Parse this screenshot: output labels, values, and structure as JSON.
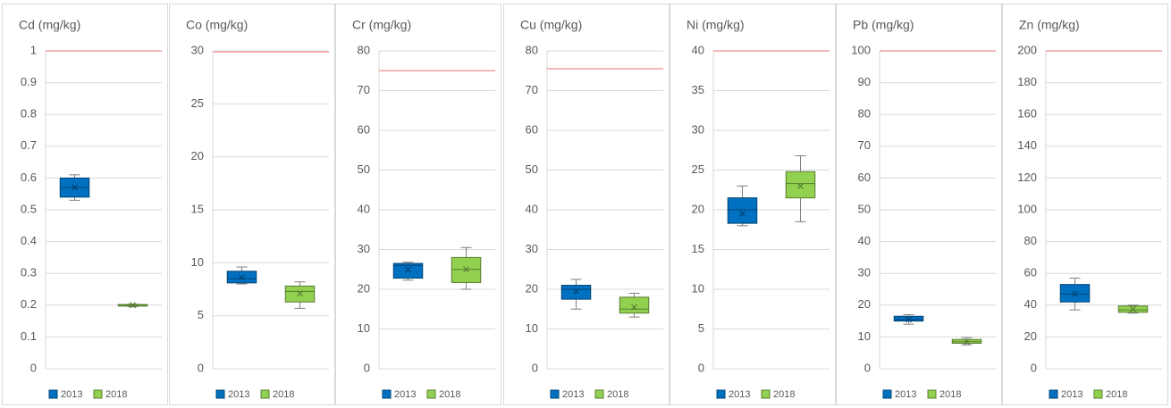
{
  "chart_data": [
    {
      "type": "box",
      "title": "Cd (mg/kg)",
      "ylim": [
        0,
        1
      ],
      "yticks": [
        0,
        0.1,
        0.2,
        0.3,
        0.4,
        0.5,
        0.6,
        0.7,
        0.8,
        0.9,
        1
      ],
      "grid": true,
      "reference_line": 1,
      "reference_color": "#f4a0a0",
      "series": [
        {
          "name": "2013",
          "color": "#0070c0",
          "min": 0.53,
          "q1": 0.54,
          "median": 0.57,
          "q3": 0.6,
          "max": 0.61,
          "mean": 0.57
        },
        {
          "name": "2018",
          "color": "#92d050",
          "min": 0.195,
          "q1": 0.197,
          "median": 0.2,
          "q3": 0.202,
          "max": 0.203,
          "mean": 0.2
        }
      ]
    },
    {
      "type": "box",
      "title": "Co (mg/kg)",
      "ylim": [
        0,
        30
      ],
      "yticks": [
        0,
        5,
        10,
        15,
        20,
        25,
        30
      ],
      "grid": true,
      "reference_line": 29.9,
      "reference_color": "#f4a0a0",
      "series": [
        {
          "name": "2013",
          "color": "#0070c0",
          "min": 8,
          "q1": 8.1,
          "median": 8.5,
          "q3": 9.2,
          "max": 9.6,
          "mean": 8.6
        },
        {
          "name": "2018",
          "color": "#92d050",
          "min": 5.7,
          "q1": 6.3,
          "median": 7.3,
          "q3": 7.8,
          "max": 8.2,
          "mean": 7.1
        }
      ]
    },
    {
      "type": "box",
      "title": "Cr (mg/kg)",
      "ylim": [
        0,
        80
      ],
      "yticks": [
        0,
        10,
        20,
        30,
        40,
        50,
        60,
        70,
        80
      ],
      "grid": true,
      "reference_line": 75,
      "reference_color": "#f4a0a0",
      "series": [
        {
          "name": "2013",
          "color": "#0070c0",
          "min": 22.3,
          "q1": 22.8,
          "median": 26,
          "q3": 26.5,
          "max": 26.8,
          "mean": 25
        },
        {
          "name": "2018",
          "color": "#92d050",
          "min": 20,
          "q1": 21.7,
          "median": 25,
          "q3": 28,
          "max": 30.5,
          "mean": 25
        }
      ]
    },
    {
      "type": "box",
      "title": "Cu (mg/kg)",
      "ylim": [
        0,
        80
      ],
      "yticks": [
        0,
        10,
        20,
        30,
        40,
        50,
        60,
        70,
        80
      ],
      "grid": true,
      "reference_line": 75.5,
      "reference_color": "#f4a0a0",
      "series": [
        {
          "name": "2013",
          "color": "#0070c0",
          "min": 15,
          "q1": 17.5,
          "median": 20,
          "q3": 21,
          "max": 22.5,
          "mean": 19.5
        },
        {
          "name": "2018",
          "color": "#92d050",
          "min": 13,
          "q1": 14,
          "median": 15,
          "q3": 18,
          "max": 19,
          "mean": 15.5
        }
      ]
    },
    {
      "type": "box",
      "title": "Ni (mg/kg)",
      "ylim": [
        0,
        40
      ],
      "yticks": [
        0,
        5,
        10,
        15,
        20,
        25,
        30,
        35,
        40
      ],
      "grid": true,
      "reference_line": 40,
      "reference_color": "#f4a0a0",
      "series": [
        {
          "name": "2013",
          "color": "#0070c0",
          "min": 18,
          "q1": 18.3,
          "median": 20,
          "q3": 21.5,
          "max": 23,
          "mean": 19.5
        },
        {
          "name": "2018",
          "color": "#92d050",
          "min": 18.5,
          "q1": 21.5,
          "median": 23.3,
          "q3": 24.8,
          "max": 26.8,
          "mean": 23
        }
      ]
    },
    {
      "type": "box",
      "title": "Pb (mg/kg)",
      "ylim": [
        0,
        100
      ],
      "yticks": [
        0,
        10,
        20,
        30,
        40,
        50,
        60,
        70,
        80,
        90,
        100
      ],
      "grid": true,
      "reference_line": 100,
      "reference_color": "#f4a0a0",
      "series": [
        {
          "name": "2013",
          "color": "#0070c0",
          "min": 14,
          "q1": 15,
          "median": 15.5,
          "q3": 16.5,
          "max": 17,
          "mean": 15.5
        },
        {
          "name": "2018",
          "color": "#92d050",
          "min": 7.5,
          "q1": 8,
          "median": 8.5,
          "q3": 9.2,
          "max": 9.8,
          "mean": 8.5
        }
      ]
    },
    {
      "type": "box",
      "title": "Zn (mg/kg)",
      "ylim": [
        0,
        200
      ],
      "yticks": [
        0,
        20,
        40,
        60,
        80,
        100,
        120,
        140,
        160,
        180,
        200
      ],
      "grid": true,
      "reference_line": 200,
      "reference_color": "#f4a0a0",
      "series": [
        {
          "name": "2013",
          "color": "#0070c0",
          "min": 37,
          "q1": 42,
          "median": 47,
          "q3": 53,
          "max": 57,
          "mean": 47
        },
        {
          "name": "2018",
          "color": "#92d050",
          "min": 35,
          "q1": 35.5,
          "median": 37,
          "q3": 39.5,
          "max": 40,
          "mean": 37.5
        }
      ]
    }
  ]
}
